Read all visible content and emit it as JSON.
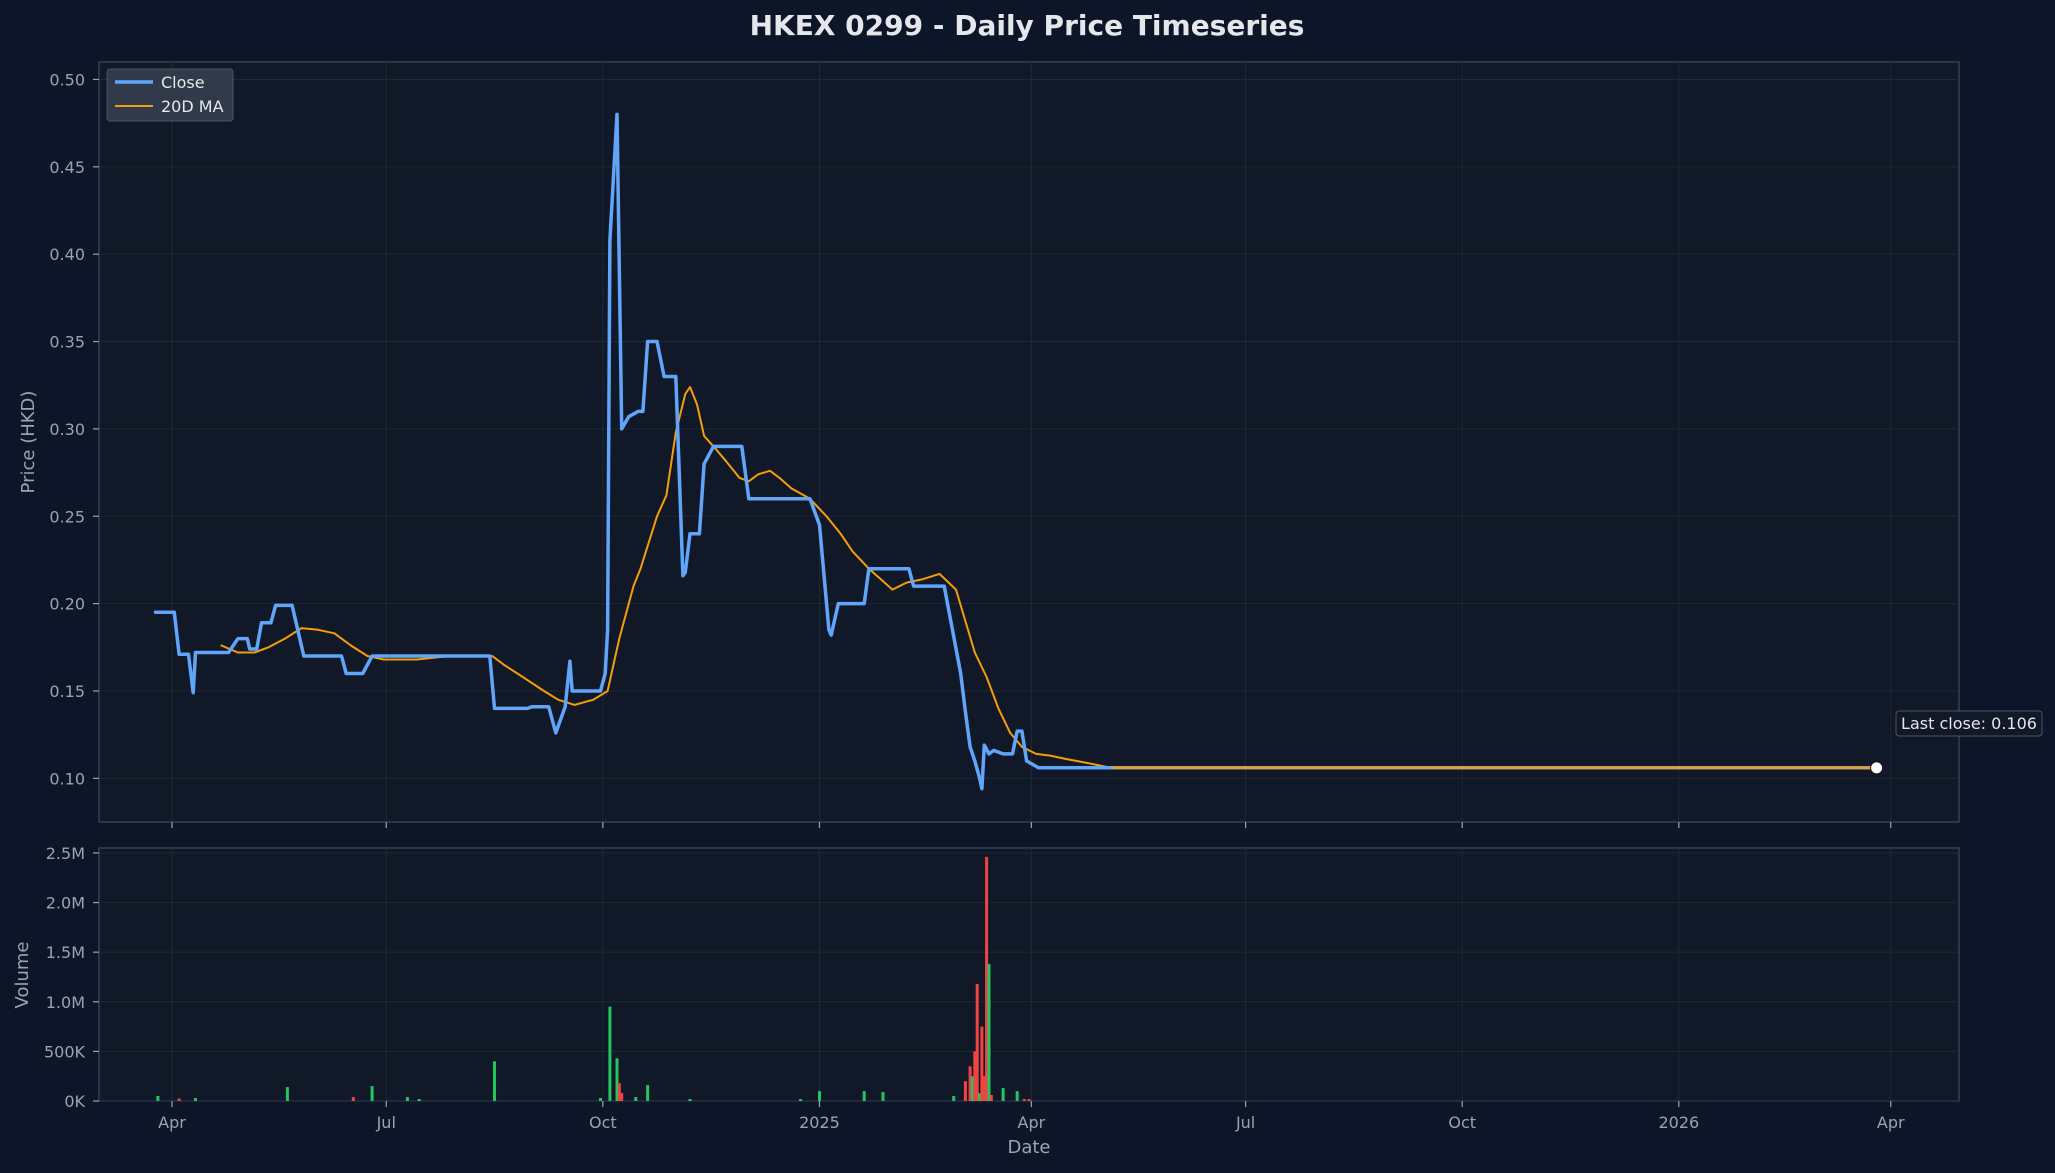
{
  "title": "HKEX 0299 - Daily Price Timeseries",
  "colors": {
    "background": "#0d1628",
    "panel": "#111827",
    "frame": "#374151",
    "grid": "#1f2937",
    "text": "#9ca3af",
    "title": "#e5e7eb",
    "close": "#60a5fa",
    "ma": "#f59e0b",
    "volume_up": "#22c55e",
    "volume_down": "#ef4444"
  },
  "chart_data": [
    {
      "type": "line",
      "title": "HKEX 0299 - Daily Price Timeseries",
      "xlabel": "",
      "ylabel": "Price (HKD)",
      "ylim": [
        0.075,
        0.51
      ],
      "xlim": [
        "2024-03-01",
        "2026-04-30"
      ],
      "x_ticks": [
        {
          "date": "2024-04-01",
          "label": "Apr"
        },
        {
          "date": "2024-07-01",
          "label": "Jul"
        },
        {
          "date": "2024-10-01",
          "label": "Oct"
        },
        {
          "date": "2025-01-01",
          "label": "2025"
        },
        {
          "date": "2025-04-01",
          "label": "Apr"
        },
        {
          "date": "2025-07-01",
          "label": "Jul"
        },
        {
          "date": "2025-10-01",
          "label": "Oct"
        },
        {
          "date": "2026-01-01",
          "label": "2026"
        },
        {
          "date": "2026-04-01",
          "label": "Apr"
        }
      ],
      "y_ticks": [
        0.1,
        0.15,
        0.2,
        0.25,
        0.3,
        0.35,
        0.4,
        0.45,
        0.5
      ],
      "y_tick_labels": [
        "0.10",
        "0.15",
        "0.20",
        "0.25",
        "0.30",
        "0.35",
        "0.40",
        "0.45",
        "0.50"
      ],
      "grid": true,
      "legend": "top-left",
      "series": [
        {
          "name": "Close",
          "color": "#60a5fa",
          "points": [
            [
              "2024-03-25",
              0.195
            ],
            [
              "2024-04-02",
              0.195
            ],
            [
              "2024-04-04",
              0.171
            ],
            [
              "2024-04-08",
              0.171
            ],
            [
              "2024-04-10",
              0.149
            ],
            [
              "2024-04-11",
              0.172
            ],
            [
              "2024-04-25",
              0.172
            ],
            [
              "2024-04-29",
              0.18
            ],
            [
              "2024-05-03",
              0.18
            ],
            [
              "2024-05-04",
              0.174
            ],
            [
              "2024-05-07",
              0.174
            ],
            [
              "2024-05-09",
              0.189
            ],
            [
              "2024-05-13",
              0.189
            ],
            [
              "2024-05-15",
              0.199
            ],
            [
              "2024-05-22",
              0.199
            ],
            [
              "2024-05-27",
              0.17
            ],
            [
              "2024-06-12",
              0.17
            ],
            [
              "2024-06-14",
              0.16
            ],
            [
              "2024-06-21",
              0.16
            ],
            [
              "2024-06-25",
              0.17
            ],
            [
              "2024-08-14",
              0.17
            ],
            [
              "2024-08-16",
              0.14
            ],
            [
              "2024-08-30",
              0.14
            ],
            [
              "2024-09-01",
              0.141
            ],
            [
              "2024-09-08",
              0.141
            ],
            [
              "2024-09-11",
              0.126
            ],
            [
              "2024-09-15",
              0.141
            ],
            [
              "2024-09-17",
              0.167
            ],
            [
              "2024-09-18",
              0.15
            ],
            [
              "2024-09-30",
              0.15
            ],
            [
              "2024-10-02",
              0.16
            ],
            [
              "2024-10-03",
              0.185
            ],
            [
              "2024-10-04",
              0.408
            ],
            [
              "2024-10-07",
              0.48
            ],
            [
              "2024-10-09",
              0.3
            ],
            [
              "2024-10-12",
              0.307
            ],
            [
              "2024-10-16",
              0.31
            ],
            [
              "2024-10-18",
              0.31
            ],
            [
              "2024-10-20",
              0.35
            ],
            [
              "2024-10-24",
              0.35
            ],
            [
              "2024-10-27",
              0.33
            ],
            [
              "2024-11-01",
              0.33
            ],
            [
              "2024-11-04",
              0.216
            ],
            [
              "2024-11-05",
              0.218
            ],
            [
              "2024-11-07",
              0.24
            ],
            [
              "2024-11-11",
              0.24
            ],
            [
              "2024-11-13",
              0.28
            ],
            [
              "2024-11-17",
              0.29
            ],
            [
              "2024-11-29",
              0.29
            ],
            [
              "2024-12-02",
              0.26
            ],
            [
              "2024-12-28",
              0.26
            ],
            [
              "2025-01-01",
              0.245
            ],
            [
              "2025-01-05",
              0.185
            ],
            [
              "2025-01-06",
              0.182
            ],
            [
              "2025-01-09",
              0.2
            ],
            [
              "2025-01-20",
              0.2
            ],
            [
              "2025-01-22",
              0.22
            ],
            [
              "2025-02-08",
              0.22
            ],
            [
              "2025-02-10",
              0.21
            ],
            [
              "2025-02-23",
              0.21
            ],
            [
              "2025-03-02",
              0.16
            ],
            [
              "2025-03-04",
              0.138
            ],
            [
              "2025-03-06",
              0.118
            ],
            [
              "2025-03-08",
              0.11
            ],
            [
              "2025-03-10",
              0.1
            ],
            [
              "2025-03-11",
              0.094
            ],
            [
              "2025-03-12",
              0.119
            ],
            [
              "2025-03-14",
              0.114
            ],
            [
              "2025-03-16",
              0.116
            ],
            [
              "2025-03-20",
              0.114
            ],
            [
              "2025-03-24",
              0.114
            ],
            [
              "2025-03-26",
              0.127
            ],
            [
              "2025-03-28",
              0.127
            ],
            [
              "2025-03-30",
              0.11
            ],
            [
              "2025-04-04",
              0.106
            ],
            [
              "2026-03-26",
              0.106
            ]
          ]
        },
        {
          "name": "20D MA",
          "color": "#f59e0b",
          "points": [
            [
              "2024-04-22",
              0.176
            ],
            [
              "2024-04-29",
              0.172
            ],
            [
              "2024-05-06",
              0.172
            ],
            [
              "2024-05-12",
              0.175
            ],
            [
              "2024-05-19",
              0.18
            ],
            [
              "2024-05-26",
              0.186
            ],
            [
              "2024-06-02",
              0.185
            ],
            [
              "2024-06-09",
              0.183
            ],
            [
              "2024-06-16",
              0.176
            ],
            [
              "2024-06-23",
              0.17
            ],
            [
              "2024-06-30",
              0.168
            ],
            [
              "2024-07-14",
              0.168
            ],
            [
              "2024-07-28",
              0.17
            ],
            [
              "2024-08-15",
              0.17
            ],
            [
              "2024-08-20",
              0.165
            ],
            [
              "2024-08-28",
              0.158
            ],
            [
              "2024-09-06",
              0.15
            ],
            [
              "2024-09-12",
              0.145
            ],
            [
              "2024-09-19",
              0.142
            ],
            [
              "2024-09-27",
              0.145
            ],
            [
              "2024-10-03",
              0.15
            ],
            [
              "2024-10-08",
              0.18
            ],
            [
              "2024-10-14",
              0.21
            ],
            [
              "2024-10-17",
              0.22
            ],
            [
              "2024-10-24",
              0.25
            ],
            [
              "2024-10-28",
              0.262
            ],
            [
              "2024-11-01",
              0.298
            ],
            [
              "2024-11-05",
              0.32
            ],
            [
              "2024-11-07",
              0.324
            ],
            [
              "2024-11-10",
              0.314
            ],
            [
              "2024-11-13",
              0.296
            ],
            [
              "2024-11-17",
              0.29
            ],
            [
              "2024-11-22",
              0.282
            ],
            [
              "2024-11-28",
              0.272
            ],
            [
              "2024-12-02",
              0.27
            ],
            [
              "2024-12-06",
              0.274
            ],
            [
              "2024-12-11",
              0.276
            ],
            [
              "2024-12-15",
              0.272
            ],
            [
              "2024-12-20",
              0.266
            ],
            [
              "2024-12-28",
              0.26
            ],
            [
              "2025-01-04",
              0.25
            ],
            [
              "2025-01-10",
              0.24
            ],
            [
              "2025-01-15",
              0.23
            ],
            [
              "2025-01-22",
              0.22
            ],
            [
              "2025-01-27",
              0.214
            ],
            [
              "2025-02-01",
              0.208
            ],
            [
              "2025-02-07",
              0.212
            ],
            [
              "2025-02-14",
              0.214
            ],
            [
              "2025-02-21",
              0.217
            ],
            [
              "2025-02-28",
              0.208
            ],
            [
              "2025-03-04",
              0.19
            ],
            [
              "2025-03-08",
              0.172
            ],
            [
              "2025-03-13",
              0.158
            ],
            [
              "2025-03-18",
              0.14
            ],
            [
              "2025-03-23",
              0.126
            ],
            [
              "2025-03-28",
              0.118
            ],
            [
              "2025-04-03",
              0.114
            ],
            [
              "2025-04-09",
              0.113
            ],
            [
              "2025-04-16",
              0.111
            ],
            [
              "2025-04-24",
              0.109
            ],
            [
              "2025-05-05",
              0.106
            ],
            [
              "2026-03-26",
              0.106
            ]
          ]
        }
      ],
      "highlight": {
        "date": "2026-03-26",
        "value": 0.106
      },
      "annotations": [
        {
          "text": "Last close: 0.106"
        }
      ]
    },
    {
      "type": "bar",
      "xlabel": "Date",
      "ylabel": "Volume",
      "ylim": [
        0,
        2550000
      ],
      "y_ticks": [
        0,
        500000,
        1000000,
        1500000,
        2000000,
        2500000
      ],
      "y_tick_labels": [
        "0K",
        "500K",
        "1.0M",
        "1.5M",
        "2.0M",
        "2.5M"
      ],
      "grid": true,
      "bars": [
        {
          "date": "2024-03-26",
          "value": 50000,
          "dir": "up"
        },
        {
          "date": "2024-04-04",
          "value": 25000,
          "dir": "down"
        },
        {
          "date": "2024-04-11",
          "value": 30000,
          "dir": "up"
        },
        {
          "date": "2024-05-20",
          "value": 140000,
          "dir": "up"
        },
        {
          "date": "2024-06-17",
          "value": 40000,
          "dir": "down"
        },
        {
          "date": "2024-06-25",
          "value": 150000,
          "dir": "up"
        },
        {
          "date": "2024-07-10",
          "value": 40000,
          "dir": "up"
        },
        {
          "date": "2024-07-15",
          "value": 20000,
          "dir": "up"
        },
        {
          "date": "2024-08-16",
          "value": 400000,
          "dir": "up"
        },
        {
          "date": "2024-09-30",
          "value": 30000,
          "dir": "up"
        },
        {
          "date": "2024-10-04",
          "value": 950000,
          "dir": "up"
        },
        {
          "date": "2024-10-07",
          "value": 430000,
          "dir": "up"
        },
        {
          "date": "2024-10-08",
          "value": 180000,
          "dir": "down"
        },
        {
          "date": "2024-10-09",
          "value": 80000,
          "dir": "down"
        },
        {
          "date": "2024-10-15",
          "value": 40000,
          "dir": "up"
        },
        {
          "date": "2024-10-20",
          "value": 160000,
          "dir": "up"
        },
        {
          "date": "2024-11-07",
          "value": 20000,
          "dir": "up"
        },
        {
          "date": "2024-12-24",
          "value": 20000,
          "dir": "up"
        },
        {
          "date": "2025-01-01",
          "value": 100000,
          "dir": "up"
        },
        {
          "date": "2025-01-20",
          "value": 100000,
          "dir": "up"
        },
        {
          "date": "2025-01-28",
          "value": 90000,
          "dir": "up"
        },
        {
          "date": "2025-02-27",
          "value": 50000,
          "dir": "up"
        },
        {
          "date": "2025-03-04",
          "value": 200000,
          "dir": "down"
        },
        {
          "date": "2025-03-06",
          "value": 350000,
          "dir": "down"
        },
        {
          "date": "2025-03-07",
          "value": 250000,
          "dir": "up"
        },
        {
          "date": "2025-03-08",
          "value": 500000,
          "dir": "down"
        },
        {
          "date": "2025-03-09",
          "value": 1180000,
          "dir": "down"
        },
        {
          "date": "2025-03-10",
          "value": 80000,
          "dir": "up"
        },
        {
          "date": "2025-03-11",
          "value": 750000,
          "dir": "down"
        },
        {
          "date": "2025-03-12",
          "value": 250000,
          "dir": "down"
        },
        {
          "date": "2025-03-13",
          "value": 2460000,
          "dir": "down"
        },
        {
          "date": "2025-03-14",
          "value": 1380000,
          "dir": "up"
        },
        {
          "date": "2025-03-15",
          "value": 60000,
          "dir": "down"
        },
        {
          "date": "2025-03-20",
          "value": 130000,
          "dir": "up"
        },
        {
          "date": "2025-03-26",
          "value": 100000,
          "dir": "up"
        },
        {
          "date": "2025-03-29",
          "value": 20000,
          "dir": "down"
        },
        {
          "date": "2025-03-31",
          "value": 20000,
          "dir": "down"
        }
      ]
    }
  ]
}
